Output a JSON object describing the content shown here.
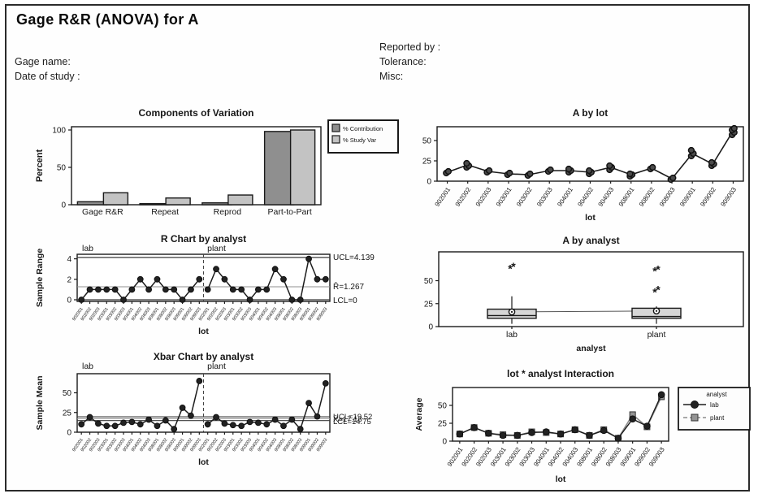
{
  "header": {
    "title": "Gage R&R (ANOVA) for A",
    "gage_name_label": "Gage name:",
    "date_label": "Date of study :",
    "reported_label": "Reported by :",
    "tolerance_label": "Tolerance:",
    "misc_label": "Misc:"
  },
  "colors": {
    "contribution_fill": "#8f8f8f",
    "studyvar_fill": "#c3c3c3",
    "box_fill": "#d6d6d6",
    "plant_marker": "#949494",
    "axis": "#1a1a1a",
    "centerline_gray": "#909090"
  },
  "chart_data": [
    {
      "id": "components_of_variation",
      "type": "bar",
      "title": "Components of Variation",
      "ylabel": "Percent",
      "yticks": [
        0,
        50,
        100
      ],
      "ylim": [
        0,
        105
      ],
      "categories": [
        "Gage R&R",
        "Repeat",
        "Reprod",
        "Part-to-Part"
      ],
      "series": [
        {
          "name": "% Contribution",
          "values": [
            4,
            1.5,
            2.5,
            98
          ]
        },
        {
          "name": "% Study Var",
          "values": [
            16,
            9,
            13,
            100
          ]
        }
      ],
      "legend_position": "right-top"
    },
    {
      "id": "a_by_lot",
      "type": "scatter",
      "title": "A by lot",
      "xlabel": "lot",
      "yticks": [
        0,
        25,
        50
      ],
      "ylim": [
        0,
        67
      ],
      "categories": [
        "902001",
        "902002",
        "902003",
        "903001",
        "903002",
        "903003",
        "904001",
        "904002",
        "904003",
        "908001",
        "908002",
        "908003",
        "909001",
        "909002",
        "909003"
      ],
      "means": [
        11,
        20,
        12,
        9,
        8,
        13,
        13,
        11,
        17,
        8,
        16,
        3,
        34,
        21,
        62
      ],
      "points": [
        [
          10,
          12
        ],
        [
          17,
          19,
          22
        ],
        [
          11,
          13
        ],
        [
          8,
          10
        ],
        [
          7,
          9
        ],
        [
          12,
          14
        ],
        [
          11,
          13,
          15
        ],
        [
          9,
          11,
          13
        ],
        [
          14,
          17,
          19
        ],
        [
          6,
          8,
          9
        ],
        [
          15,
          17
        ],
        [
          2,
          4
        ],
        [
          31,
          34,
          38
        ],
        [
          19,
          21,
          23
        ],
        [
          57,
          60,
          63,
          65
        ]
      ]
    },
    {
      "id": "r_chart",
      "type": "control",
      "title": "R Chart by analyst",
      "xlabel": "lot",
      "ylabel": "Sample Range",
      "yticks": [
        0,
        2,
        4
      ],
      "ylim": [
        0,
        4.6
      ],
      "ucl": 4.139,
      "center": 1.267,
      "lcl": 0,
      "ucl_label": "UCL=4.139",
      "center_label": "R̄=1.267",
      "lcl_label": "LCL=0",
      "panels": [
        {
          "name": "lab",
          "values": [
            0,
            1,
            1,
            1,
            1,
            0,
            1,
            2,
            1,
            2,
            1,
            1,
            0,
            1,
            2
          ]
        },
        {
          "name": "plant",
          "values": [
            1,
            3,
            2,
            1,
            1,
            0,
            1,
            1,
            3,
            2,
            0,
            0,
            4,
            2,
            2
          ]
        }
      ],
      "categories": [
        "902001",
        "902002",
        "902003",
        "903001",
        "903002",
        "903003",
        "904001",
        "904002",
        "904003",
        "908001",
        "908002",
        "908003",
        "909001",
        "909002",
        "909003",
        "902001",
        "902002",
        "902003",
        "903001",
        "903002",
        "903003",
        "904001",
        "904002",
        "904003",
        "908001",
        "908002",
        "908003",
        "909001",
        "909002",
        "909003"
      ]
    },
    {
      "id": "a_by_analyst",
      "type": "box",
      "title": "A by analyst",
      "xlabel": "analyst",
      "yticks": [
        0,
        25,
        50
      ],
      "ylim": [
        0,
        75
      ],
      "categories": [
        "lab",
        "plant"
      ],
      "boxes": [
        {
          "q1": 9,
          "q3": 19,
          "median": 12,
          "mean": 16,
          "whisker_low": 3,
          "whisker_high": 33,
          "outliers": [
            63,
            65
          ]
        },
        {
          "q1": 9,
          "q3": 20,
          "median": 11,
          "mean": 17,
          "whisker_low": 3,
          "whisker_high": 22,
          "outliers": [
            37,
            40,
            60,
            62
          ]
        }
      ]
    },
    {
      "id": "xbar_chart",
      "type": "control",
      "title": "Xbar Chart by analyst",
      "xlabel": "lot",
      "ylabel": "Sample Mean",
      "yticks": [
        0,
        25,
        50
      ],
      "ylim": [
        0,
        70
      ],
      "ucl": 19.52,
      "center": 17.13,
      "lcl": 14.75,
      "ucl_label": "UCL=19.52",
      "center_label": "X̄=17.13",
      "lcl_label": "LCL=14.75",
      "panels": [
        {
          "name": "lab",
          "values": [
            10,
            19,
            11,
            8,
            8,
            12,
            13,
            10,
            16,
            8,
            15,
            4,
            31,
            21,
            65
          ]
        },
        {
          "name": "plant",
          "values": [
            10,
            19,
            11,
            9,
            8,
            13,
            12,
            10,
            16,
            8,
            16,
            4,
            37,
            20,
            62
          ]
        }
      ],
      "categories": [
        "902001",
        "902002",
        "902003",
        "903001",
        "903002",
        "903003",
        "904001",
        "904002",
        "904003",
        "908001",
        "908002",
        "908003",
        "909001",
        "909002",
        "909003",
        "902001",
        "902002",
        "902003",
        "903001",
        "903002",
        "903003",
        "904001",
        "904002",
        "904003",
        "908001",
        "908002",
        "908003",
        "909001",
        "909002",
        "909003"
      ]
    },
    {
      "id": "interaction",
      "type": "line",
      "title": "lot * analyst Interaction",
      "xlabel": "lot",
      "ylabel": "Average",
      "yticks": [
        0,
        25,
        50
      ],
      "ylim": [
        0,
        72
      ],
      "legend_title": "analyst",
      "categories": [
        "902001",
        "902002",
        "902003",
        "903001",
        "903002",
        "903003",
        "904001",
        "904002",
        "904003",
        "908001",
        "908002",
        "908003",
        "909001",
        "909002",
        "909003"
      ],
      "series": [
        {
          "name": "lab",
          "marker": "circle",
          "values": [
            10,
            19,
            11,
            8,
            8,
            12,
            13,
            10,
            16,
            8,
            15,
            4,
            31,
            21,
            65
          ]
        },
        {
          "name": "plant",
          "marker": "square",
          "values": [
            10,
            19,
            11,
            9,
            8,
            13,
            12,
            10,
            16,
            8,
            16,
            4,
            37,
            20,
            62
          ]
        }
      ]
    }
  ]
}
